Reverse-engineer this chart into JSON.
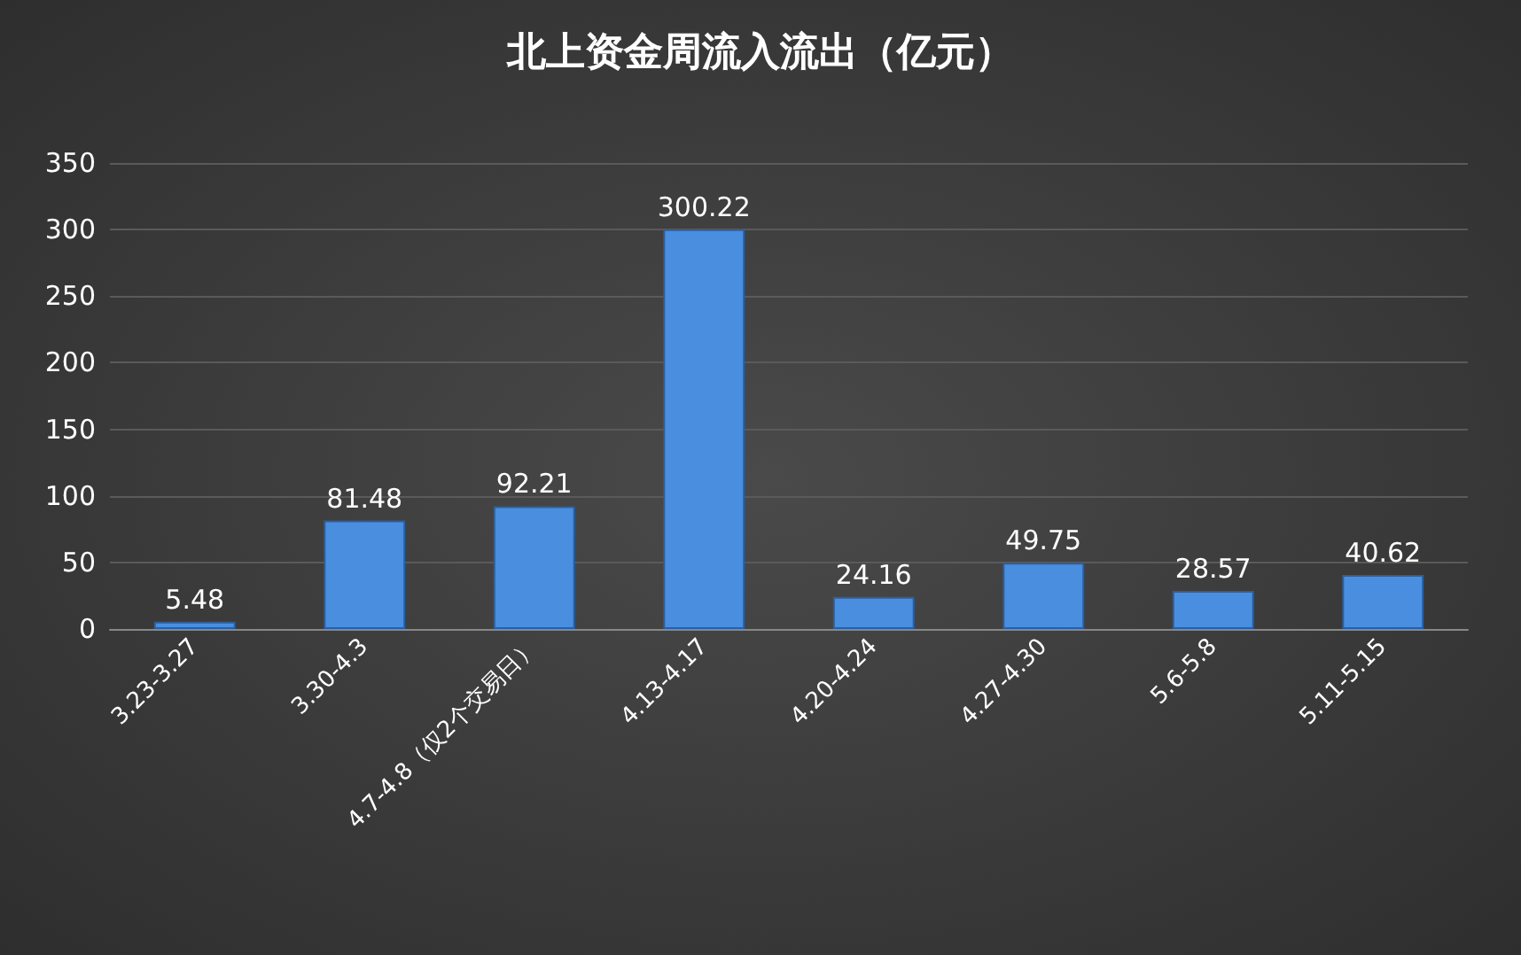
{
  "chart_data": {
    "type": "bar",
    "title": "北上资金周流入流出（亿元）",
    "categories": [
      "3.23-3.27",
      "3.30-4.3",
      "4.7-4.8（仅2个交易日）",
      "4.13-4.17",
      "4.20-4.24",
      "4.27-4.30",
      "5.6-5.8",
      "5.11-5.15"
    ],
    "values": [
      5.48,
      81.48,
      92.21,
      300.22,
      24.16,
      49.75,
      28.57,
      40.62
    ],
    "color": "#4a8ee0",
    "ylim": [
      0,
      350
    ],
    "yticks": [
      0,
      50,
      100,
      150,
      200,
      250,
      300,
      350
    ],
    "grid": true,
    "data_labels": true
  }
}
